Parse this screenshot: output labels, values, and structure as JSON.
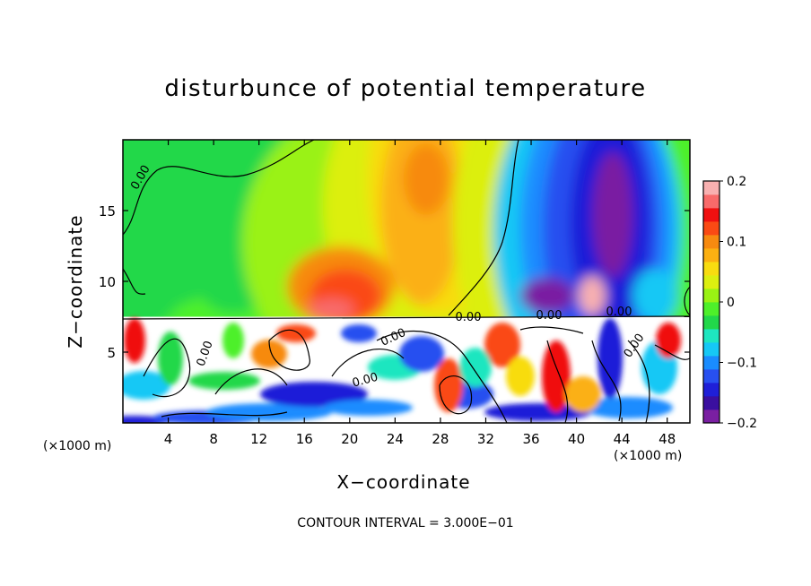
{
  "chart_data": {
    "type": "heatmap",
    "title": "disturbunce of potential temperature",
    "xlabel": "X−coordinate",
    "ylabel": "Z−coordinate",
    "x_unit_label": "(×1000 m)",
    "y_unit_label": "(×1000 m)",
    "xlim": [
      0,
      50
    ],
    "ylim": [
      0,
      20
    ],
    "x_ticks": [
      4,
      8,
      12,
      16,
      20,
      24,
      28,
      32,
      36,
      40,
      44,
      48
    ],
    "y_ticks": [
      5,
      10,
      15
    ],
    "colorbar": {
      "range": [
        -0.2,
        0.2
      ],
      "tick_labels": [
        "0.2",
        "0.1",
        "0",
        "−0.1",
        "−0.2"
      ],
      "tick_values": [
        0.2,
        0.1,
        0,
        -0.1,
        -0.2
      ],
      "colors": [
        "#7a1fa2",
        "#3a0fa0",
        "#1f1fd8",
        "#2850f0",
        "#1a8cff",
        "#16c8f5",
        "#1ee6c0",
        "#22d84a",
        "#4ef02a",
        "#9af214",
        "#dcef10",
        "#f8dc10",
        "#fbb012",
        "#f78a10",
        "#fa4a14",
        "#f01010",
        "#f86a6a",
        "#f8b0b0"
      ]
    },
    "contour_labels": [
      "0.00",
      "0.00",
      "0.00",
      "0.00",
      "0.00",
      "0.00",
      "0.00",
      "0.00"
    ],
    "contour_interval_text": "CONTOUR INTERVAL = 3.000E−01",
    "grid": false,
    "legend": "right colorbar"
  }
}
